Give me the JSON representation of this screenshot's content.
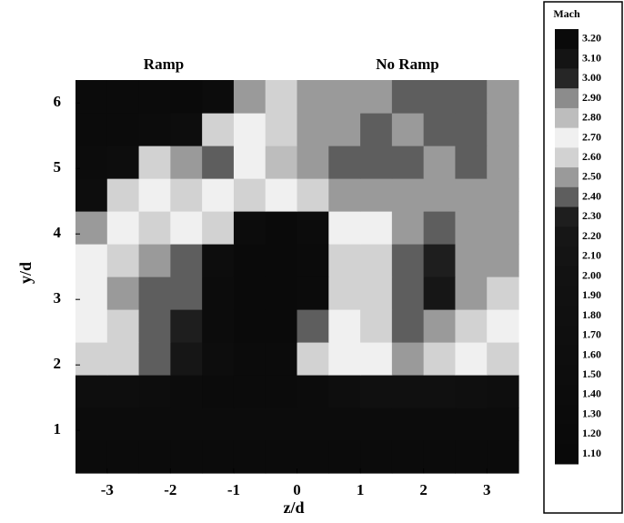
{
  "chart_data": {
    "type": "heatmap",
    "annotations": [
      "Ramp",
      "No Ramp"
    ],
    "xlabel": "z/d",
    "ylabel": "y/d",
    "xlim": [
      -3.5,
      3.5
    ],
    "ylim": [
      0.35,
      6.35
    ],
    "xticks": [
      -3,
      -2,
      -1,
      0,
      1,
      2,
      3
    ],
    "yticks": [
      1,
      2,
      3,
      4,
      5,
      6
    ],
    "x": [
      -3.25,
      -2.75,
      -2.25,
      -1.75,
      -1.25,
      -0.75,
      -0.25,
      0.25,
      0.75,
      1.25,
      1.75,
      2.25,
      2.75,
      3.25
    ],
    "y": [
      0.6,
      1.1,
      1.6,
      2.1,
      2.6,
      3.1,
      3.6,
      4.1,
      4.6,
      5.1,
      5.6,
      6.1
    ],
    "z": [
      [
        1.3,
        1.3,
        1.3,
        1.3,
        1.3,
        1.3,
        1.3,
        1.3,
        1.3,
        1.3,
        1.3,
        1.3,
        1.3,
        1.3
      ],
      [
        1.4,
        1.4,
        1.4,
        1.4,
        1.4,
        1.4,
        1.4,
        1.4,
        1.4,
        1.4,
        1.4,
        1.4,
        1.4,
        1.4
      ],
      [
        1.6,
        1.6,
        1.5,
        1.4,
        1.3,
        1.3,
        1.3,
        1.4,
        1.6,
        1.8,
        1.8,
        1.8,
        1.7,
        1.6
      ],
      [
        2.6,
        2.6,
        2.4,
        2.2,
        1.5,
        1.3,
        1.3,
        2.6,
        2.7,
        2.7,
        2.5,
        2.6,
        2.7,
        2.6
      ],
      [
        2.7,
        2.6,
        2.4,
        2.3,
        1.4,
        1.2,
        1.2,
        2.4,
        2.7,
        2.6,
        2.4,
        2.5,
        2.6,
        2.7
      ],
      [
        2.7,
        2.5,
        2.4,
        2.4,
        1.4,
        1.2,
        1.2,
        1.3,
        2.6,
        2.6,
        2.4,
        2.2,
        2.5,
        2.6
      ],
      [
        2.7,
        2.6,
        2.5,
        2.4,
        1.5,
        1.2,
        1.2,
        1.3,
        2.6,
        2.6,
        2.4,
        2.3,
        2.5,
        2.5
      ],
      [
        2.5,
        2.7,
        2.6,
        2.7,
        2.6,
        1.4,
        1.2,
        1.4,
        2.7,
        2.7,
        2.5,
        2.4,
        2.5,
        2.5
      ],
      [
        1.5,
        2.6,
        2.7,
        2.6,
        2.7,
        2.6,
        2.7,
        2.6,
        2.5,
        2.5,
        2.5,
        2.5,
        2.5,
        2.5
      ],
      [
        1.4,
        1.5,
        2.6,
        2.5,
        2.4,
        2.7,
        2.8,
        2.5,
        2.4,
        2.4,
        2.4,
        2.5,
        2.4,
        2.5
      ],
      [
        1.3,
        1.3,
        1.4,
        1.5,
        2.6,
        2.7,
        2.6,
        2.5,
        2.5,
        2.4,
        2.5,
        2.4,
        2.4,
        2.5
      ],
      [
        1.3,
        1.3,
        1.3,
        1.2,
        1.4,
        2.5,
        2.6,
        2.5,
        2.5,
        2.5,
        2.4,
        2.4,
        2.4,
        2.5
      ]
    ],
    "colorbar": {
      "title": "Mach",
      "levels": [
        {
          "value": 3.2,
          "label": "3.20"
        },
        {
          "value": 3.1,
          "label": "3.10"
        },
        {
          "value": 3.0,
          "label": "3.00"
        },
        {
          "value": 2.9,
          "label": "2.90"
        },
        {
          "value": 2.8,
          "label": "2.80"
        },
        {
          "value": 2.7,
          "label": "2.70"
        },
        {
          "value": 2.6,
          "label": "2.60"
        },
        {
          "value": 2.5,
          "label": "2.50"
        },
        {
          "value": 2.4,
          "label": "2.40"
        },
        {
          "value": 2.3,
          "label": "2.30"
        },
        {
          "value": 2.2,
          "label": "2.20"
        },
        {
          "value": 2.1,
          "label": "2.10"
        },
        {
          "value": 2.0,
          "label": "2.00"
        },
        {
          "value": 1.9,
          "label": "1.90"
        },
        {
          "value": 1.8,
          "label": "1.80"
        },
        {
          "value": 1.7,
          "label": "1.70"
        },
        {
          "value": 1.6,
          "label": "1.60"
        },
        {
          "value": 1.5,
          "label": "1.50"
        },
        {
          "value": 1.4,
          "label": "1.40"
        },
        {
          "value": 1.3,
          "label": "1.30"
        },
        {
          "value": 1.2,
          "label": "1.20"
        },
        {
          "value": 1.1,
          "label": "1.10"
        }
      ],
      "colors": [
        "#0a0a0a",
        "#141414",
        "#262626",
        "#8c8c8c",
        "#bdbdbd",
        "#f0f0f0",
        "#d2d2d2",
        "#9a9a9a",
        "#5e5e5e",
        "#1e1e1e",
        "#161616",
        "#141414",
        "#121212",
        "#111111",
        "#101010",
        "#0f0f0f",
        "#0e0e0e",
        "#0d0d0d",
        "#0c0c0c",
        "#0b0b0b",
        "#0a0a0a",
        "#090909"
      ]
    }
  }
}
